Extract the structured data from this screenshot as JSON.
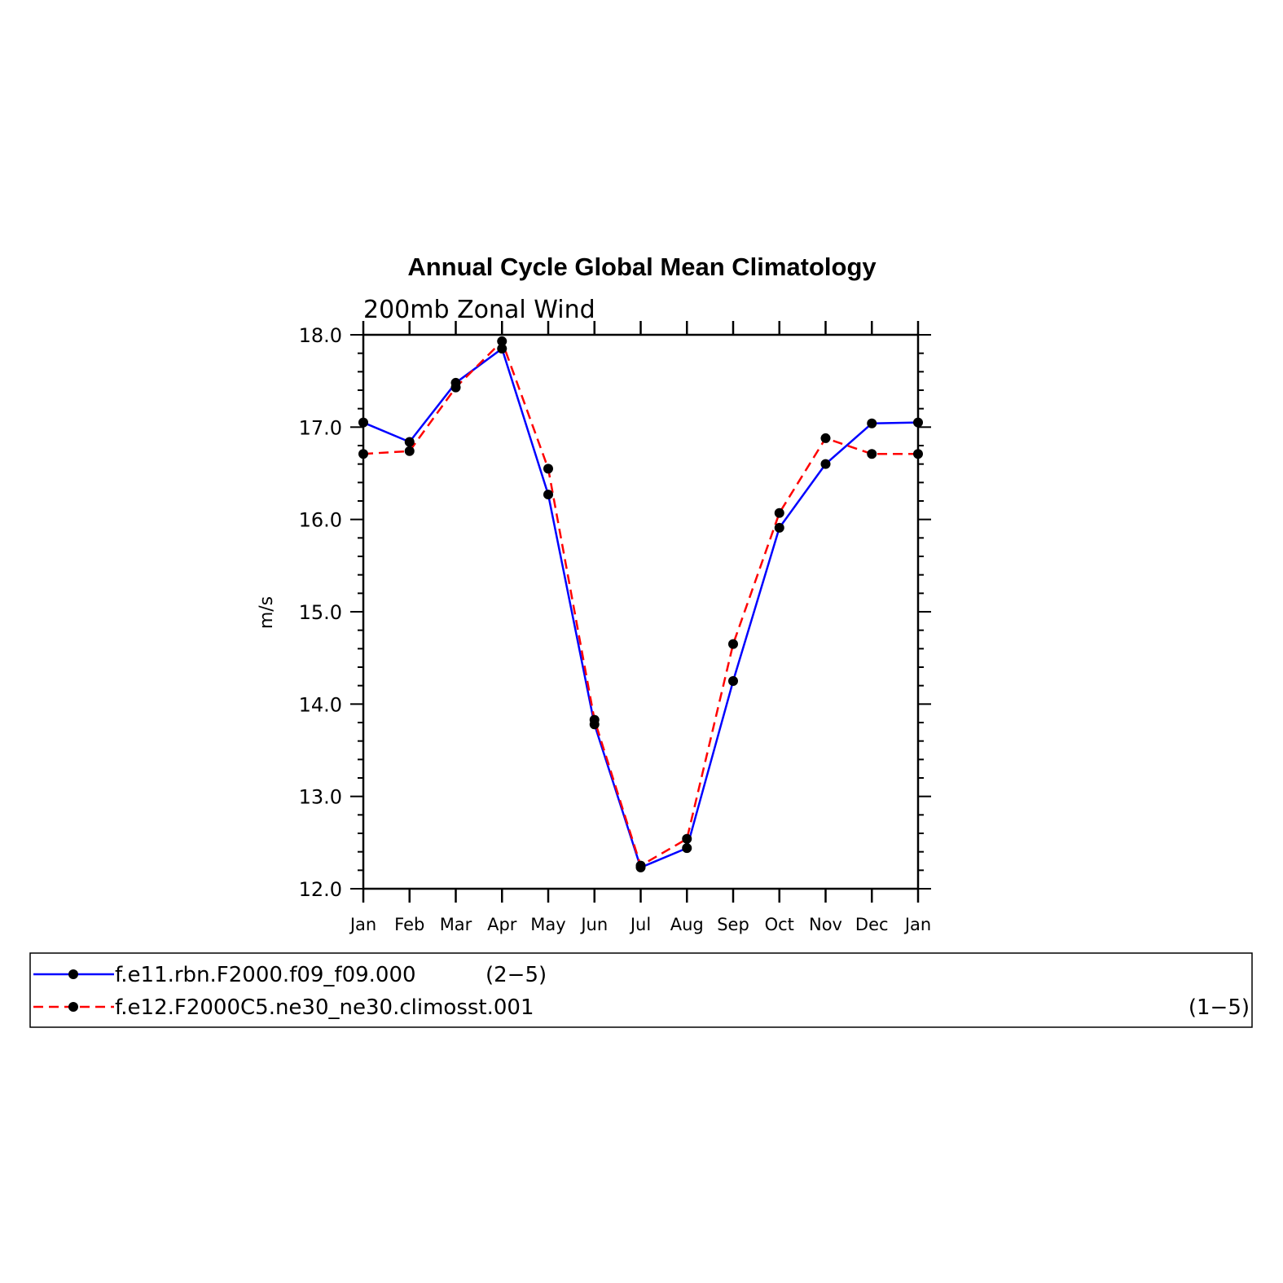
{
  "chart_data": {
    "type": "line",
    "title": "Annual Cycle Global Mean Climatology",
    "subtitle": "200mb Zonal Wind",
    "xlabel": "",
    "ylabel": "m/s",
    "ylim": [
      12.0,
      18.0
    ],
    "ytick_labels": [
      "12.0",
      "13.0",
      "14.0",
      "15.0",
      "16.0",
      "17.0",
      "18.0"
    ],
    "categories": [
      "Jan",
      "Feb",
      "Mar",
      "Apr",
      "May",
      "Jun",
      "Jul",
      "Aug",
      "Sep",
      "Oct",
      "Nov",
      "Dec",
      "Jan"
    ],
    "grid": false,
    "legend_position": "bottom",
    "series": [
      {
        "name": "f.e11.rbn.F2000.f09_f09.000",
        "range_label": "(2−5)",
        "color": "#0000ff",
        "line_style": "solid",
        "values": [
          17.05,
          16.84,
          17.48,
          17.85,
          16.27,
          13.78,
          12.23,
          12.44,
          14.25,
          15.91,
          16.6,
          17.04,
          17.05
        ]
      },
      {
        "name": "f.e12.F2000C5.ne30_ne30.climosst.001",
        "range_label": "(1−5)",
        "color": "#ff0000",
        "line_style": "dashed",
        "values": [
          16.71,
          16.74,
          17.43,
          17.93,
          16.55,
          13.83,
          12.25,
          12.54,
          14.65,
          16.07,
          16.88,
          16.71,
          16.71
        ]
      }
    ]
  }
}
